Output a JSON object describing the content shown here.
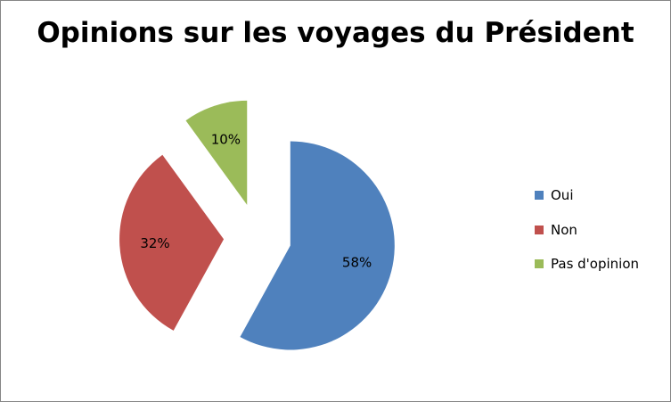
{
  "chart_data": {
    "type": "pie",
    "title": "Opinions sur les voyages du Président",
    "slices": [
      {
        "name": "Oui",
        "value": 58,
        "label": "58%",
        "color": "#4F81BD"
      },
      {
        "name": "Non",
        "value": 32,
        "label": "32%",
        "color": "#C0504D"
      },
      {
        "name": "Pas d'opinion",
        "value": 10,
        "label": "10%",
        "color": "#9BBB59"
      }
    ],
    "exploded": true,
    "legend_position": "right"
  }
}
